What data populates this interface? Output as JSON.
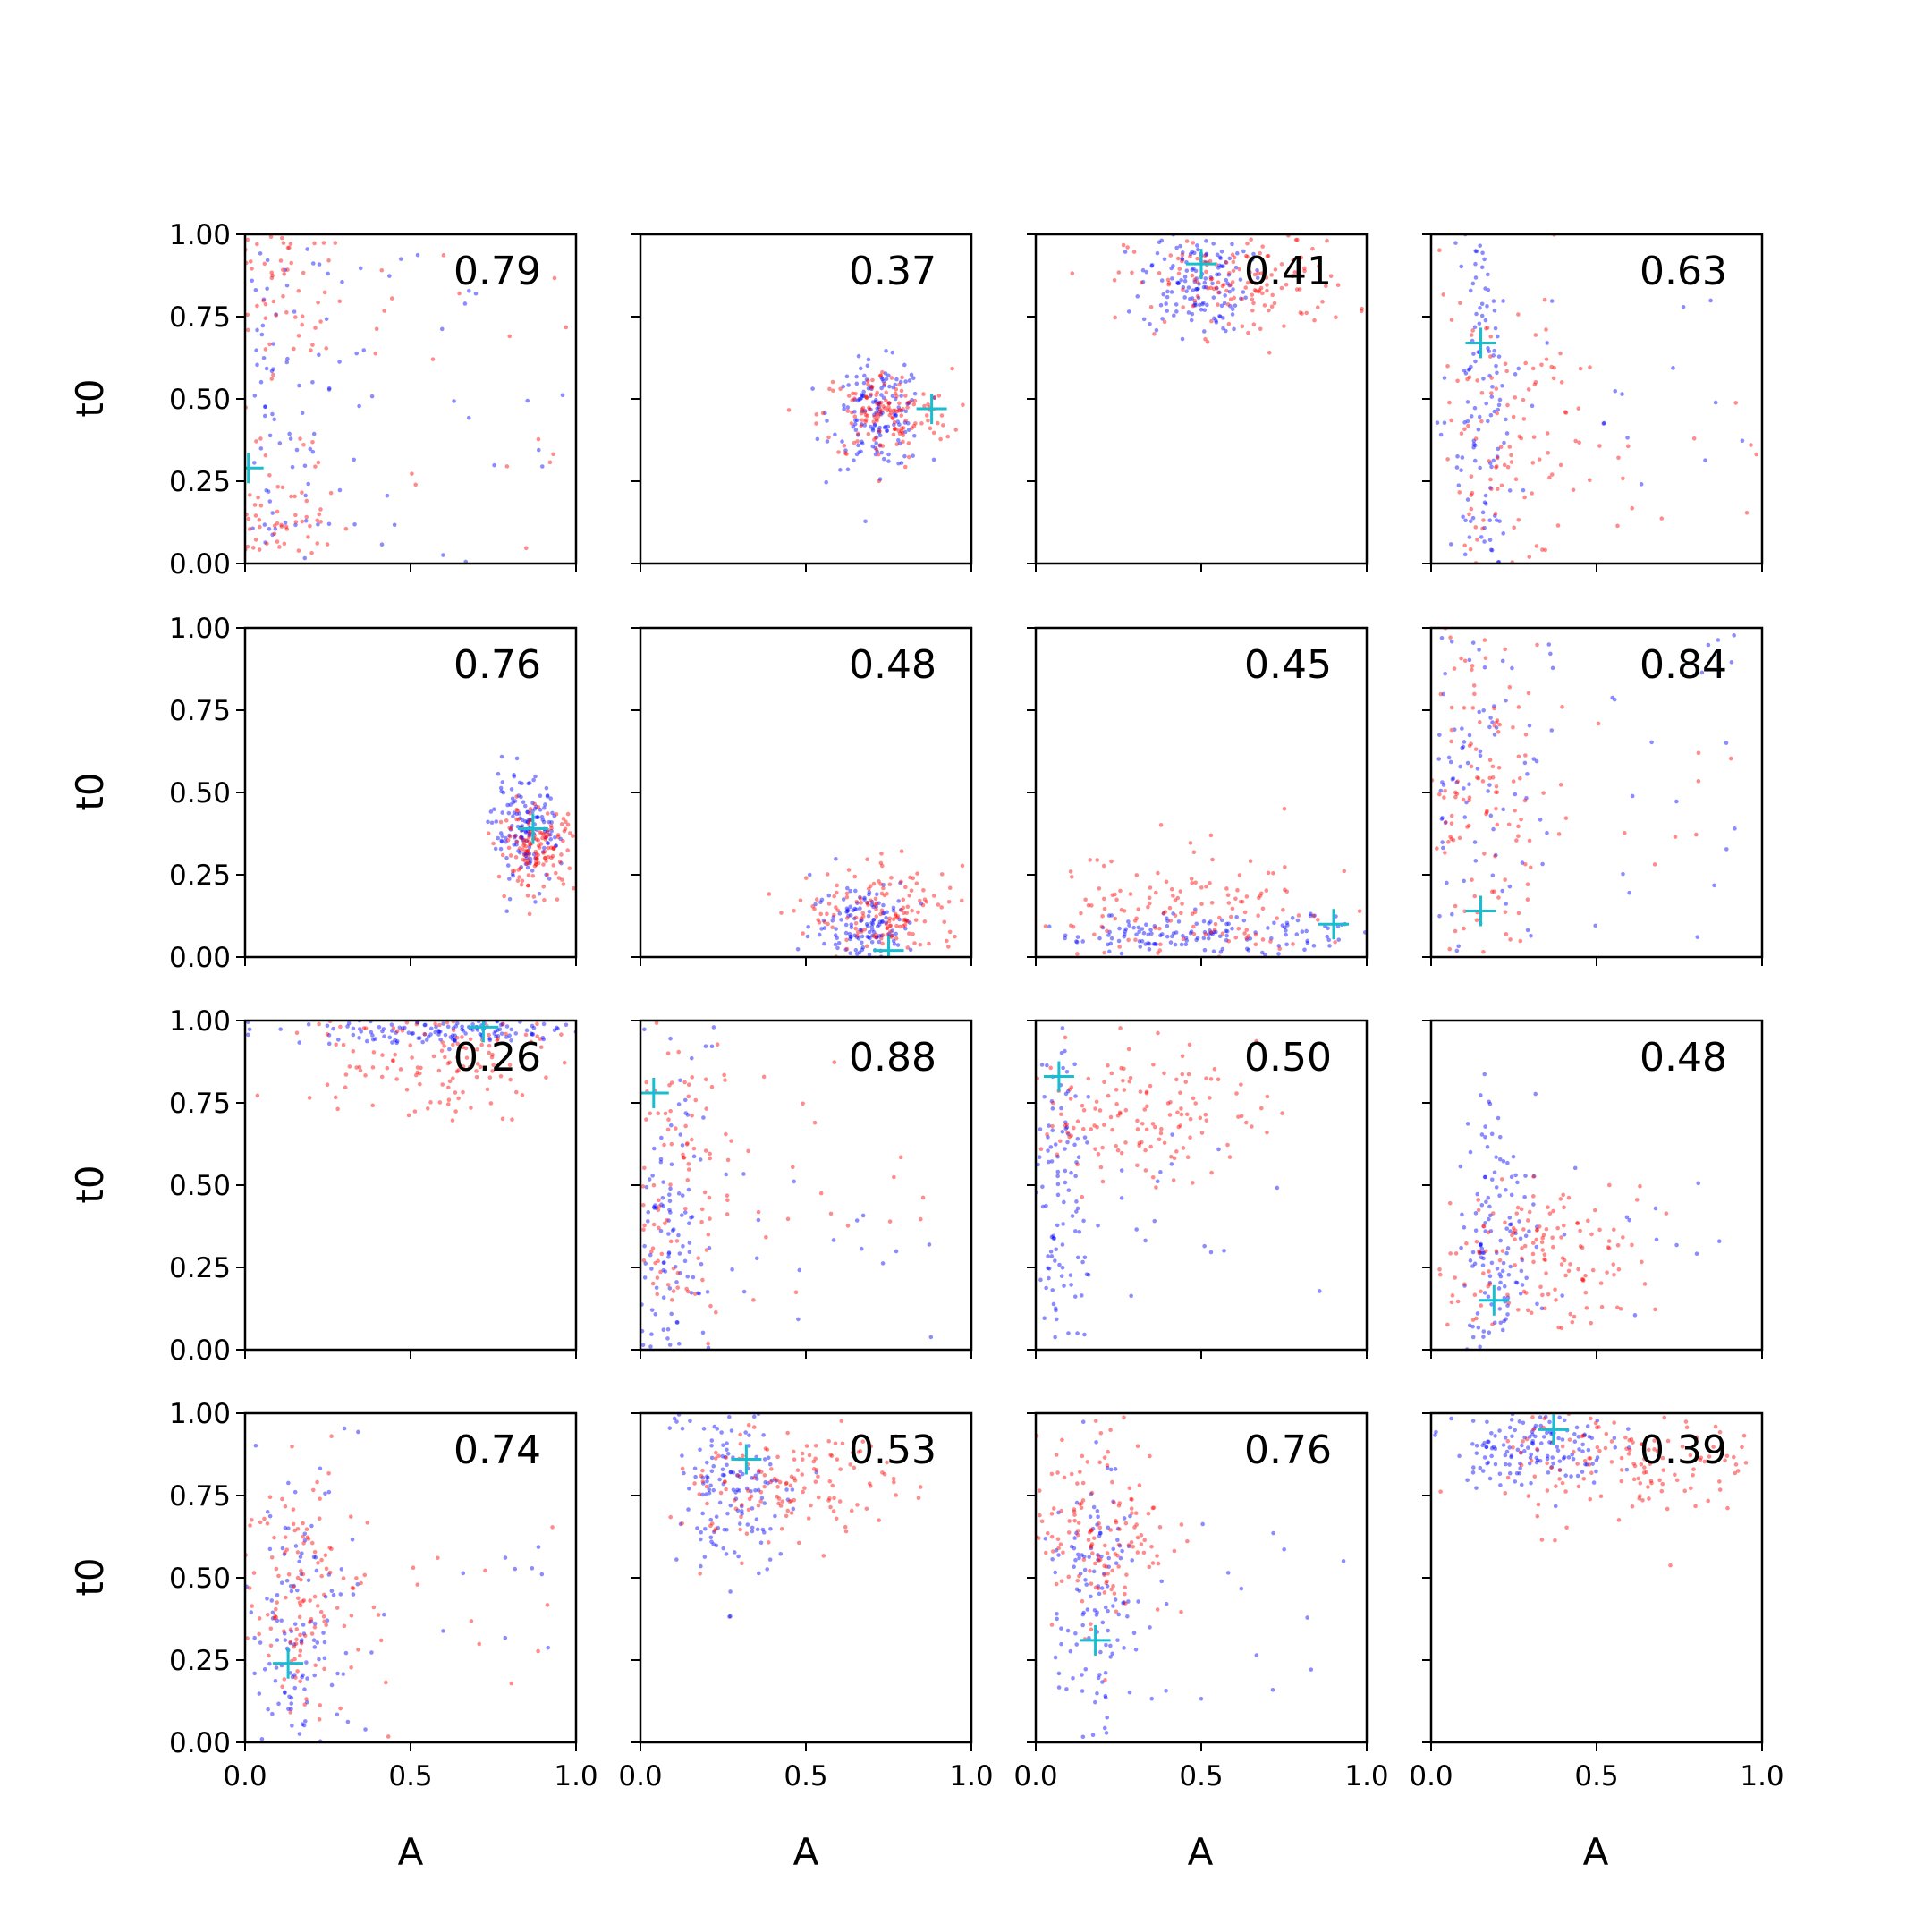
{
  "figure": {
    "x_label": "A",
    "y_label": "t0",
    "x_ticks": [
      "0.0",
      "0.5",
      "1.0"
    ],
    "y_ticks": [
      "0.00",
      "0.25",
      "0.50",
      "0.75",
      "1.00"
    ],
    "colors": {
      "series_a": "#0000ff",
      "series_b": "#ff0000",
      "marker": "#17becf",
      "axes": "#000000"
    }
  },
  "chart_data": {
    "type": "scatter",
    "layout": "4x4 grid of scatter panels with shared axes",
    "xlim": [
      0,
      1
    ],
    "ylim": [
      0,
      1
    ],
    "xlabel": "A",
    "ylabel": "t0",
    "grid": false,
    "panels": [
      {
        "value": "0.79",
        "marker": [
          0.01,
          0.29
        ],
        "blue": {
          "kind": "wide",
          "cx": 0.12,
          "cy": 0.5,
          "sx": 0.25,
          "sy": 0.35
        },
        "red": {
          "kind": "bimodal",
          "cx": 0.1,
          "cy": 0.55,
          "sx": 0.15,
          "sy": 0.35
        }
      },
      {
        "value": "0.37",
        "marker": [
          0.88,
          0.47
        ],
        "blue": {
          "kind": "blob",
          "cx": 0.72,
          "cy": 0.45,
          "sx": 0.07,
          "sy": 0.08
        },
        "red": {
          "kind": "blob",
          "cx": 0.74,
          "cy": 0.45,
          "sx": 0.1,
          "sy": 0.07
        }
      },
      {
        "value": "0.41",
        "marker": [
          0.5,
          0.91
        ],
        "blue": {
          "kind": "blob",
          "cx": 0.48,
          "cy": 0.86,
          "sx": 0.08,
          "sy": 0.08
        },
        "red": {
          "kind": "blob",
          "cx": 0.62,
          "cy": 0.85,
          "sx": 0.17,
          "sy": 0.08
        }
      },
      {
        "value": "0.63",
        "marker": [
          0.15,
          0.67
        ],
        "blue": {
          "kind": "column",
          "cx": 0.16,
          "cy": 0.5,
          "sx": 0.05,
          "sy": 0.3
        },
        "red": {
          "kind": "column",
          "cx": 0.2,
          "cy": 0.35,
          "sx": 0.15,
          "sy": 0.25
        }
      },
      {
        "value": "0.76",
        "marker": [
          0.87,
          0.39
        ],
        "blue": {
          "kind": "blob",
          "cx": 0.85,
          "cy": 0.38,
          "sx": 0.05,
          "sy": 0.08
        },
        "red": {
          "kind": "blob",
          "cx": 0.88,
          "cy": 0.33,
          "sx": 0.06,
          "sy": 0.06
        }
      },
      {
        "value": "0.48",
        "marker": [
          0.75,
          0.02
        ],
        "blue": {
          "kind": "blob",
          "cx": 0.68,
          "cy": 0.1,
          "sx": 0.08,
          "sy": 0.07
        },
        "red": {
          "kind": "blob",
          "cx": 0.75,
          "cy": 0.13,
          "sx": 0.12,
          "sy": 0.07
        }
      },
      {
        "value": "0.45",
        "marker": [
          0.9,
          0.1
        ],
        "blue": {
          "kind": "band",
          "cx": 0.5,
          "cy": 0.07,
          "sx": 0.25,
          "sy": 0.03
        },
        "red": {
          "kind": "band",
          "cx": 0.45,
          "cy": 0.12,
          "sx": 0.25,
          "sy": 0.1
        }
      },
      {
        "value": "0.84",
        "marker": [
          0.15,
          0.14
        ],
        "blue": {
          "kind": "wide",
          "cx": 0.1,
          "cy": 0.5,
          "sx": 0.25,
          "sy": 0.3
        },
        "red": {
          "kind": "column",
          "cx": 0.15,
          "cy": 0.5,
          "sx": 0.1,
          "sy": 0.3
        }
      },
      {
        "value": "0.26",
        "marker": [
          0.72,
          0.98
        ],
        "blue": {
          "kind": "band",
          "cx": 0.6,
          "cy": 0.97,
          "sx": 0.25,
          "sy": 0.02
        },
        "red": {
          "kind": "blob",
          "cx": 0.55,
          "cy": 0.9,
          "sx": 0.2,
          "sy": 0.1
        }
      },
      {
        "value": "0.88",
        "marker": [
          0.04,
          0.78
        ],
        "blue": {
          "kind": "column",
          "cx": 0.08,
          "cy": 0.35,
          "sx": 0.06,
          "sy": 0.3
        },
        "red": {
          "kind": "column",
          "cx": 0.1,
          "cy": 0.45,
          "sx": 0.1,
          "sy": 0.3
        }
      },
      {
        "value": "0.50",
        "marker": [
          0.07,
          0.83
        ],
        "blue": {
          "kind": "column",
          "cx": 0.06,
          "cy": 0.45,
          "sx": 0.05,
          "sy": 0.3
        },
        "red": {
          "kind": "blob",
          "cx": 0.3,
          "cy": 0.72,
          "sx": 0.18,
          "sy": 0.1
        }
      },
      {
        "value": "0.48",
        "marker": [
          0.19,
          0.15
        ],
        "blue": {
          "kind": "column",
          "cx": 0.2,
          "cy": 0.3,
          "sx": 0.06,
          "sy": 0.2
        },
        "red": {
          "kind": "blob",
          "cx": 0.33,
          "cy": 0.28,
          "sx": 0.15,
          "sy": 0.1
        }
      },
      {
        "value": "0.74",
        "marker": [
          0.13,
          0.24
        ],
        "blue": {
          "kind": "column",
          "cx": 0.14,
          "cy": 0.35,
          "sx": 0.08,
          "sy": 0.3
        },
        "red": {
          "kind": "column",
          "cx": 0.15,
          "cy": 0.45,
          "sx": 0.1,
          "sy": 0.2
        }
      },
      {
        "value": "0.53",
        "marker": [
          0.32,
          0.86
        ],
        "blue": {
          "kind": "blob",
          "cx": 0.28,
          "cy": 0.78,
          "sx": 0.1,
          "sy": 0.15
        },
        "red": {
          "kind": "blob",
          "cx": 0.45,
          "cy": 0.78,
          "sx": 0.17,
          "sy": 0.1
        }
      },
      {
        "value": "0.76",
        "marker": [
          0.18,
          0.31
        ],
        "blue": {
          "kind": "column",
          "cx": 0.18,
          "cy": 0.4,
          "sx": 0.06,
          "sy": 0.25
        },
        "red": {
          "kind": "blob",
          "cx": 0.2,
          "cy": 0.65,
          "sx": 0.1,
          "sy": 0.15
        }
      },
      {
        "value": "0.39",
        "marker": [
          0.37,
          0.95
        ],
        "blue": {
          "kind": "blob",
          "cx": 0.3,
          "cy": 0.9,
          "sx": 0.12,
          "sy": 0.06
        },
        "red": {
          "kind": "blob",
          "cx": 0.6,
          "cy": 0.85,
          "sx": 0.2,
          "sy": 0.1
        }
      }
    ]
  }
}
